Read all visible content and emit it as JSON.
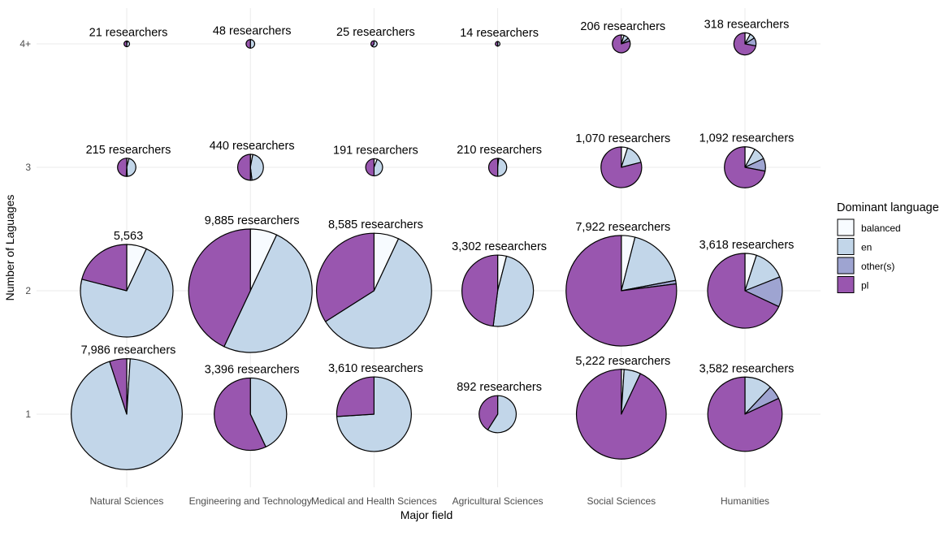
{
  "chart_data": {
    "type": "pie-grid",
    "xlabel": "Major field",
    "ylabel": "Number of Laguages",
    "categories": [
      "Natural Sciences",
      "Engineering and Technology",
      "Medical and Health Sciences",
      "Agricultural Sciences",
      "Social Sciences",
      "Humanities"
    ],
    "y_levels": [
      "1",
      "2",
      "3",
      "4+"
    ],
    "legend": {
      "title": "Dominant language",
      "items": [
        {
          "key": "balanced",
          "label": "balanced",
          "color": "#f7fbff"
        },
        {
          "key": "en",
          "label": "en",
          "color": "#c2d6e9"
        },
        {
          "key": "other",
          "label": "other(s)",
          "color": "#9ea4d1"
        },
        {
          "key": "pl",
          "label": "pl",
          "color": "#9956af"
        }
      ]
    },
    "cells": [
      {
        "field": 0,
        "level": 0,
        "label": "7,986 researchers",
        "count": 7986,
        "shares": {
          "balanced": 0.01,
          "en": 0.94,
          "other": 0.0,
          "pl": 0.05
        }
      },
      {
        "field": 0,
        "level": 1,
        "label": "5,563",
        "count": 5563,
        "shares": {
          "balanced": 0.07,
          "en": 0.72,
          "other": 0.0,
          "pl": 0.21
        }
      },
      {
        "field": 0,
        "level": 2,
        "label": "215 researchers",
        "count": 215,
        "shares": {
          "balanced": 0.04,
          "en": 0.45,
          "other": 0.02,
          "pl": 0.49
        }
      },
      {
        "field": 0,
        "level": 3,
        "label": "21 researchers",
        "count": 21,
        "shares": {
          "balanced": 0.05,
          "en": 0.45,
          "other": 0.0,
          "pl": 0.5
        }
      },
      {
        "field": 1,
        "level": 0,
        "label": "3,396 researchers",
        "count": 3396,
        "shares": {
          "balanced": 0.0,
          "en": 0.43,
          "other": 0.0,
          "pl": 0.57
        }
      },
      {
        "field": 1,
        "level": 1,
        "label": "9,885 researchers",
        "count": 9885,
        "shares": {
          "balanced": 0.07,
          "en": 0.5,
          "other": 0.0,
          "pl": 0.43
        }
      },
      {
        "field": 1,
        "level": 2,
        "label": "440 researchers",
        "count": 440,
        "shares": {
          "balanced": 0.03,
          "en": 0.45,
          "other": 0.02,
          "pl": 0.5
        }
      },
      {
        "field": 1,
        "level": 3,
        "label": "48 researchers",
        "count": 48,
        "shares": {
          "balanced": 0.0,
          "en": 0.5,
          "other": 0.0,
          "pl": 0.5
        }
      },
      {
        "field": 2,
        "level": 0,
        "label": "3,610 researchers",
        "count": 3610,
        "shares": {
          "balanced": 0.0,
          "en": 0.74,
          "other": 0.0,
          "pl": 0.26
        }
      },
      {
        "field": 2,
        "level": 1,
        "label": "8,585 researchers",
        "count": 8585,
        "shares": {
          "balanced": 0.07,
          "en": 0.59,
          "other": 0.0,
          "pl": 0.34
        }
      },
      {
        "field": 2,
        "level": 2,
        "label": "191 researchers",
        "count": 191,
        "shares": {
          "balanced": 0.06,
          "en": 0.44,
          "other": 0.0,
          "pl": 0.5
        }
      },
      {
        "field": 2,
        "level": 3,
        "label": "25 researchers",
        "count": 25,
        "shares": {
          "balanced": 0.0,
          "en": 0.6,
          "other": 0.0,
          "pl": 0.4
        }
      },
      {
        "field": 3,
        "level": 0,
        "label": "892 researchers",
        "count": 892,
        "shares": {
          "balanced": 0.0,
          "en": 0.59,
          "other": 0.0,
          "pl": 0.41
        }
      },
      {
        "field": 3,
        "level": 1,
        "label": "3,302 researchers",
        "count": 3302,
        "shares": {
          "balanced": 0.04,
          "en": 0.48,
          "other": 0.0,
          "pl": 0.48
        }
      },
      {
        "field": 3,
        "level": 2,
        "label": "210 researchers",
        "count": 210,
        "shares": {
          "balanced": 0.02,
          "en": 0.48,
          "other": 0.0,
          "pl": 0.5
        }
      },
      {
        "field": 3,
        "level": 3,
        "label": "14 researchers",
        "count": 14,
        "shares": {
          "balanced": 0.0,
          "en": 0.5,
          "other": 0.0,
          "pl": 0.5
        }
      },
      {
        "field": 4,
        "level": 0,
        "label": "5,222 researchers",
        "count": 5222,
        "shares": {
          "balanced": 0.01,
          "en": 0.06,
          "other": 0.0,
          "pl": 0.93
        }
      },
      {
        "field": 4,
        "level": 1,
        "label": "7,922 researchers",
        "count": 7922,
        "shares": {
          "balanced": 0.04,
          "en": 0.18,
          "other": 0.01,
          "pl": 0.77
        }
      },
      {
        "field": 4,
        "level": 2,
        "label": "1,070 researchers",
        "count": 1070,
        "shares": {
          "balanced": 0.05,
          "en": 0.16,
          "other": 0.0,
          "pl": 0.79
        }
      },
      {
        "field": 4,
        "level": 3,
        "label": "206 researchers",
        "count": 206,
        "shares": {
          "balanced": 0.05,
          "en": 0.09,
          "other": 0.06,
          "pl": 0.8
        }
      },
      {
        "field": 5,
        "level": 0,
        "label": "3,582 researchers",
        "count": 3582,
        "shares": {
          "balanced": 0.0,
          "en": 0.12,
          "other": 0.06,
          "pl": 0.82
        }
      },
      {
        "field": 5,
        "level": 1,
        "label": "3,618 researchers",
        "count": 3618,
        "shares": {
          "balanced": 0.05,
          "en": 0.14,
          "other": 0.13,
          "pl": 0.68
        }
      },
      {
        "field": 5,
        "level": 2,
        "label": "1,092 researchers",
        "count": 1092,
        "shares": {
          "balanced": 0.08,
          "en": 0.1,
          "other": 0.1,
          "pl": 0.72
        }
      },
      {
        "field": 5,
        "level": 3,
        "label": "318 researchers",
        "count": 318,
        "shares": {
          "balanced": 0.08,
          "en": 0.08,
          "other": 0.12,
          "pl": 0.72
        }
      }
    ]
  }
}
